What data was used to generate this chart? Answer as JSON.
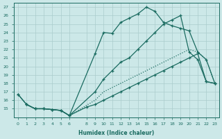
{
  "xlabel": "Humidex (Indice chaleur)",
  "ylabel": "",
  "bg_color": "#cce8e8",
  "grid_color": "#aacccc",
  "line_color": "#1a6b60",
  "xlim": [
    -0.5,
    23.5
  ],
  "ylim": [
    14,
    27.5
  ],
  "xticks": [
    0,
    1,
    2,
    3,
    4,
    5,
    6,
    8,
    9,
    10,
    11,
    12,
    13,
    14,
    15,
    16,
    17,
    18,
    19,
    20,
    21,
    22,
    23
  ],
  "yticks": [
    15,
    16,
    17,
    18,
    19,
    20,
    21,
    22,
    23,
    24,
    25,
    26,
    27
  ],
  "lines": [
    {
      "x": [
        0,
        1,
        2,
        3,
        4,
        5,
        6,
        9,
        10,
        11,
        12,
        13,
        14,
        15,
        16,
        17,
        18,
        19,
        20,
        21,
        22,
        23
      ],
      "y": [
        16.7,
        15.5,
        15.0,
        15.0,
        14.9,
        14.8,
        14.2,
        21.5,
        24.0,
        23.9,
        25.2,
        25.7,
        26.2,
        27.0,
        26.5,
        25.2,
        24.8,
        24.5,
        24.2,
        21.7,
        20.8,
        18.0
      ],
      "style": "-",
      "marker": "+"
    },
    {
      "x": [
        0,
        1,
        2,
        3,
        4,
        5,
        6,
        9,
        10,
        11,
        12,
        13,
        14,
        15,
        16,
        17,
        18,
        19,
        20,
        21,
        22,
        23
      ],
      "y": [
        16.7,
        15.5,
        15.0,
        15.0,
        14.9,
        14.8,
        14.2,
        17.0,
        18.5,
        19.5,
        20.5,
        21.0,
        22.0,
        23.0,
        24.0,
        25.0,
        25.5,
        26.0,
        21.7,
        20.8,
        18.2,
        18.0
      ],
      "style": "-",
      "marker": "+"
    },
    {
      "x": [
        1,
        2,
        3,
        4,
        5,
        6,
        9,
        10,
        11,
        12,
        13,
        14,
        15,
        16,
        17,
        18,
        19,
        20,
        21,
        22,
        23
      ],
      "y": [
        15.5,
        15.0,
        15.0,
        14.9,
        14.8,
        14.2,
        16.0,
        17.0,
        17.5,
        18.0,
        18.5,
        19.0,
        19.5,
        20.0,
        20.5,
        21.0,
        21.5,
        22.0,
        21.7,
        20.8,
        18.0
      ],
      "style": ":",
      "marker": null
    },
    {
      "x": [
        1,
        2,
        3,
        4,
        5,
        6,
        8,
        9,
        10,
        11,
        12,
        13,
        14,
        15,
        16,
        17,
        18,
        19,
        20,
        21,
        22,
        23
      ],
      "y": [
        15.5,
        15.0,
        15.0,
        14.9,
        14.8,
        14.2,
        15.2,
        15.5,
        16.0,
        16.5,
        17.0,
        17.5,
        18.0,
        18.5,
        19.0,
        19.5,
        20.0,
        20.5,
        21.0,
        21.5,
        18.2,
        18.0
      ],
      "style": "-",
      "marker": "+"
    }
  ]
}
